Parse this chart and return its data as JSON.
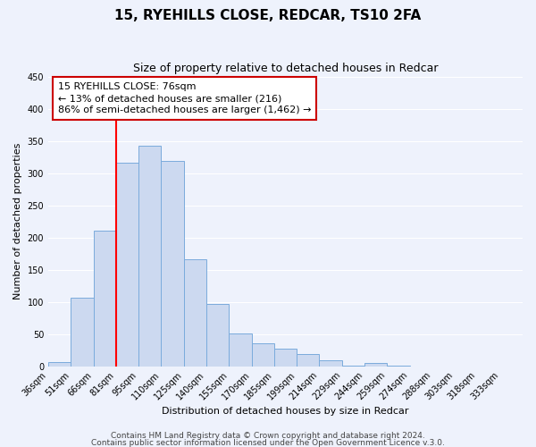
{
  "title": "15, RYEHILLS CLOSE, REDCAR, TS10 2FA",
  "subtitle": "Size of property relative to detached houses in Redcar",
  "xlabel": "Distribution of detached houses by size in Redcar",
  "ylabel": "Number of detached properties",
  "bar_labels": [
    "36sqm",
    "51sqm",
    "66sqm",
    "81sqm",
    "95sqm",
    "110sqm",
    "125sqm",
    "140sqm",
    "155sqm",
    "170sqm",
    "185sqm",
    "199sqm",
    "214sqm",
    "229sqm",
    "244sqm",
    "259sqm",
    "274sqm",
    "288sqm",
    "303sqm",
    "318sqm",
    "333sqm"
  ],
  "bar_values": [
    7,
    106,
    210,
    316,
    342,
    319,
    166,
    97,
    51,
    35,
    28,
    19,
    9,
    1,
    5,
    1,
    0,
    0,
    0,
    0,
    0
  ],
  "bar_color": "#ccd9f0",
  "bar_edge_color": "#7aabdc",
  "ylim": [
    0,
    450
  ],
  "yticks": [
    0,
    50,
    100,
    150,
    200,
    250,
    300,
    350,
    400,
    450
  ],
  "red_line_index": 3,
  "annotation_title": "15 RYEHILLS CLOSE: 76sqm",
  "annotation_line1": "← 13% of detached houses are smaller (216)",
  "annotation_line2": "86% of semi-detached houses are larger (1,462) →",
  "annotation_box_color": "#ffffff",
  "annotation_box_edge": "#cc0000",
  "footer1": "Contains HM Land Registry data © Crown copyright and database right 2024.",
  "footer2": "Contains public sector information licensed under the Open Government Licence v.3.0.",
  "background_color": "#eef2fc",
  "grid_color": "#ffffff",
  "title_fontsize": 11,
  "subtitle_fontsize": 9,
  "axis_label_fontsize": 8,
  "tick_fontsize": 7,
  "annotation_fontsize": 8,
  "footer_fontsize": 6.5
}
